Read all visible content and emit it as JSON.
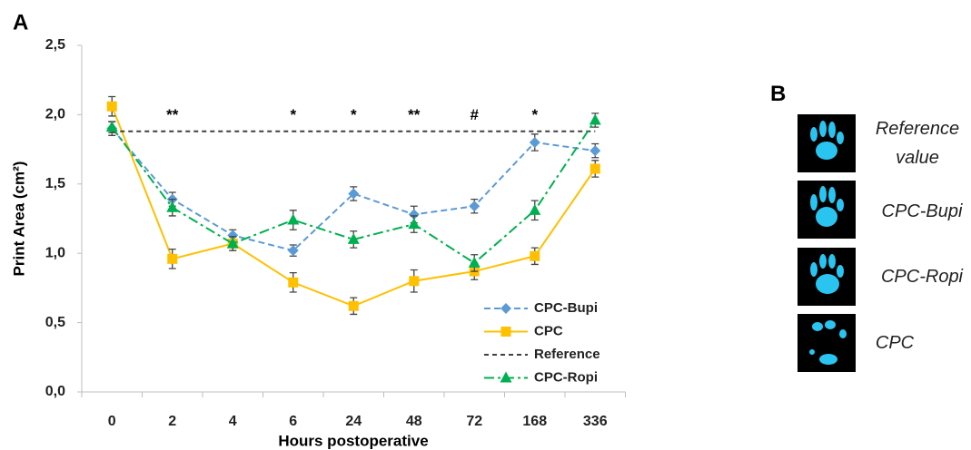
{
  "chart_data": {
    "type": "line",
    "panel_label": "A",
    "x_label": "Hours postoperative",
    "y_label": "Print Area (cm²)",
    "categories": [
      "0",
      "2",
      "4",
      "6",
      "24",
      "48",
      "72",
      "168",
      "336"
    ],
    "ylim": [
      0,
      2.5
    ],
    "yticks": [
      {
        "value": 0,
        "label": "0,0"
      },
      {
        "value": 0.5,
        "label": "0,5"
      },
      {
        "value": 1,
        "label": "1,0"
      },
      {
        "value": 1.5,
        "label": "1,5"
      },
      {
        "value": 2,
        "label": "2,0"
      },
      {
        "value": 2.5,
        "label": "2,5"
      }
    ],
    "grid": false,
    "legend": "lower right",
    "series": [
      {
        "name": "CPC-Bupi",
        "color": "#5b9bd5",
        "marker": "diamond",
        "dash": "dashed",
        "values": [
          1.9,
          1.39,
          1.13,
          1.02,
          1.43,
          1.28,
          1.34,
          1.8,
          1.74
        ],
        "errors": [
          0.05,
          0.05,
          0.04,
          0.04,
          0.05,
          0.06,
          0.05,
          0.06,
          0.05
        ]
      },
      {
        "name": "CPC",
        "color": "#ffc000",
        "marker": "square",
        "dash": "solid",
        "values": [
          2.06,
          0.96,
          1.07,
          0.79,
          0.62,
          0.8,
          0.87,
          0.98,
          1.61
        ],
        "errors": [
          0.07,
          0.07,
          0.05,
          0.07,
          0.06,
          0.08,
          0.06,
          0.06,
          0.06
        ]
      },
      {
        "name": "Reference",
        "color": "#404040",
        "marker": "none",
        "dash": "short-dashed",
        "values": [
          1.88,
          1.88,
          1.88,
          1.88,
          1.88,
          1.88,
          1.88,
          1.88,
          1.88
        ]
      },
      {
        "name": "CPC-Ropi",
        "color": "#00b050",
        "marker": "triangle",
        "dash": "dash-dot",
        "values": [
          1.91,
          1.33,
          1.07,
          1.24,
          1.1,
          1.21,
          0.93,
          1.31,
          1.96
        ],
        "errors": [
          0.04,
          0.06,
          0.05,
          0.07,
          0.06,
          0.06,
          0.06,
          0.07,
          0.05
        ]
      }
    ],
    "annotations": [
      {
        "text": "**",
        "x": "2"
      },
      {
        "text": "*",
        "x": "6"
      },
      {
        "text": "*",
        "x": "24"
      },
      {
        "text": "**",
        "x": "48"
      },
      {
        "text": "#",
        "x": "72"
      },
      {
        "text": "*",
        "x": "168"
      }
    ]
  },
  "panel_b": {
    "label": "B",
    "images": [
      {
        "label": "Reference value"
      },
      {
        "label": "CPC-Bupi"
      },
      {
        "label": "CPC-Ropi"
      },
      {
        "label": "CPC"
      }
    ]
  }
}
